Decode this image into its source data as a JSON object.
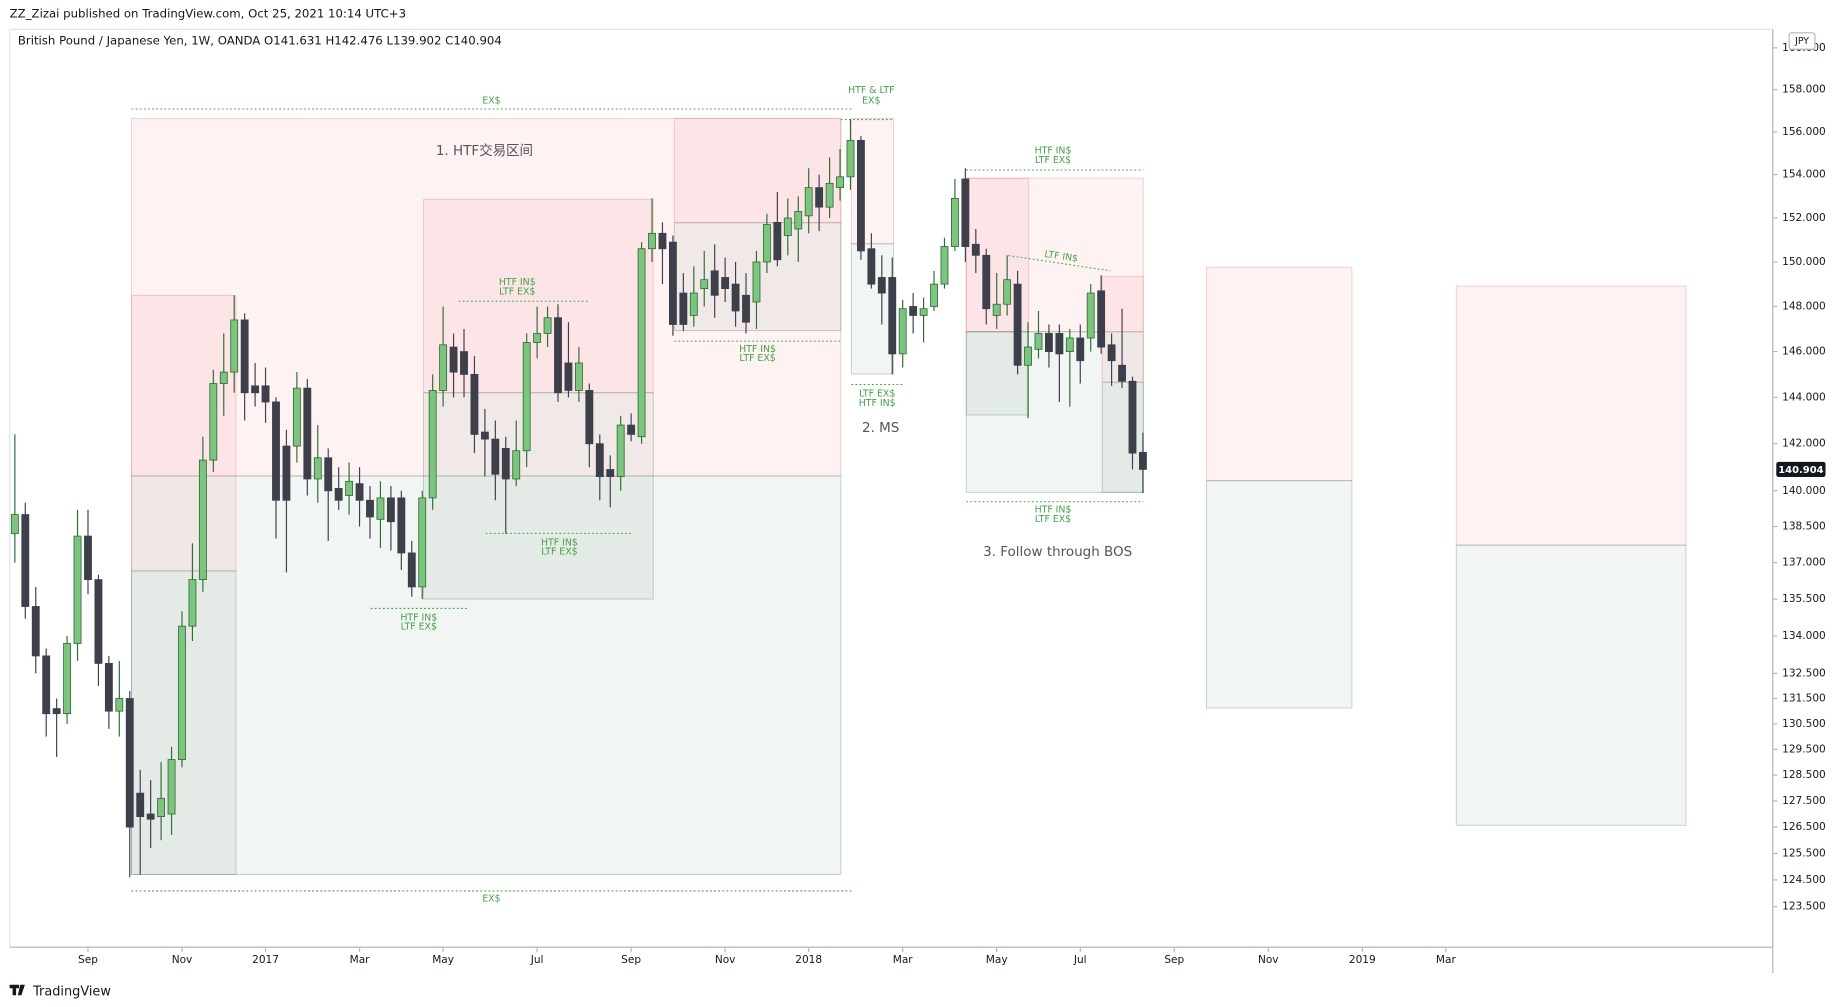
{
  "chart_data": {
    "type": "candlestick",
    "header": "ZZ_Zizai published on TradingView.com, Oct 25, 2021 10:14 UTC+3",
    "legend_line": "British Pound / Japanese Yen, 1W, OANDA  O141.631  H142.476  L139.902  C140.904",
    "currency_label": "JPY",
    "footer": "TradingView",
    "log_scale": true,
    "grid": false,
    "up_color": "#7cc47f",
    "down_color": "#3d3f4a",
    "open": [
      138.2,
      139,
      135.2,
      133.2,
      131.1,
      130.9,
      133.7,
      138.1,
      136.3,
      132.9,
      131,
      131.5,
      127.8,
      127,
      126.9,
      127,
      129.1,
      134.4,
      136.3,
      141.3,
      144.6,
      145.1,
      147.4,
      144.5,
      144.5,
      143.8,
      141.9,
      141.9,
      144.4,
      140.5,
      141.4,
      140.1,
      139.8,
      140.3,
      139.6,
      138.8,
      139.7,
      139.7,
      137.4,
      136,
      139.7,
      144.3,
      146.2,
      146,
      145,
      142.5,
      142.2,
      141.8,
      140.5,
      141.7,
      146.4,
      146.8,
      147.5,
      145.5,
      144.3,
      144.3,
      142,
      140.9,
      140.6,
      142.8,
      142.3,
      150.6,
      151.3,
      150.9,
      148.6,
      147.6,
      148.8,
      149.6,
      149.3,
      149,
      148.5,
      148.2,
      150,
      151.8,
      151.2,
      151.5,
      152.1,
      153.4,
      152.5,
      153.4,
      153.9,
      155.6,
      150.6,
      149.3,
      149.3,
      145.9,
      148,
      147.6,
      148,
      149,
      150.7,
      153.8,
      150.8,
      150.3,
      147.6,
      148.1,
      149,
      145.4,
      146.1,
      146.8,
      146.8,
      146,
      146.6,
      146.6,
      148.7,
      146.3,
      145.4,
      144.7,
      141.631
    ],
    "high": [
      142.4,
      139.5,
      136,
      133.5,
      131.5,
      134,
      139.2,
      139.2,
      136.5,
      133.2,
      133,
      131.8,
      128.7,
      128.3,
      129,
      129.6,
      135,
      137.8,
      142.3,
      145.2,
      146.8,
      148.5,
      147.7,
      145.5,
      145.3,
      144,
      142.6,
      145.1,
      144.8,
      142.8,
      141.8,
      141,
      141.2,
      141,
      140.2,
      140.4,
      140.2,
      140,
      137.9,
      140,
      145,
      148,
      146.8,
      147,
      145.8,
      143.5,
      143,
      142.3,
      143,
      146.8,
      148,
      148,
      148.1,
      147.3,
      146.2,
      144.6,
      142.4,
      141.5,
      143.2,
      143.3,
      150.9,
      152.9,
      151.8,
      151.2,
      149.5,
      149.8,
      150.5,
      150.8,
      150.2,
      150,
      149.5,
      150.5,
      152.2,
      153.2,
      152.9,
      153,
      154.3,
      154,
      154.8,
      155.2,
      156.6,
      155.8,
      151.3,
      150.3,
      150.2,
      148.3,
      148.6,
      148.4,
      149.6,
      151.1,
      153.8,
      154.3,
      151.5,
      150.6,
      149.5,
      150.3,
      149.6,
      147.3,
      147.8,
      147.2,
      147.2,
      147,
      147.2,
      149,
      149.4,
      146.8,
      147.9,
      144.9,
      142.476
    ],
    "low": [
      137,
      134.7,
      132.5,
      130,
      129.2,
      130.5,
      133,
      135.7,
      132,
      130.3,
      130,
      124.6,
      124.7,
      125.7,
      126,
      126.2,
      128.8,
      133.8,
      135.8,
      140.8,
      143.2,
      144.2,
      143,
      143.6,
      142.9,
      138,
      136.6,
      141.2,
      139.8,
      139.5,
      137.9,
      139.2,
      139,
      138.5,
      138,
      137.6,
      137.5,
      136.7,
      135.6,
      135.5,
      139.2,
      143.6,
      144,
      144,
      141.6,
      140.6,
      139.6,
      138.2,
      140.2,
      141,
      145.7,
      146.2,
      143.8,
      144,
      143.8,
      141,
      139.6,
      139.3,
      140,
      142.1,
      142,
      150,
      149,
      146.7,
      146.9,
      147.1,
      148,
      147.5,
      148.2,
      147.1,
      146.8,
      147,
      149.5,
      149.8,
      150.3,
      150,
      151.3,
      151.4,
      152,
      152.8,
      153.3,
      150.1,
      148.8,
      147.2,
      145,
      145.3,
      146.8,
      146.4,
      147.8,
      148.8,
      150.5,
      150,
      149.5,
      147.2,
      147,
      147.6,
      145,
      143.1,
      145.7,
      145.3,
      143.8,
      143.6,
      144.6,
      146,
      145.9,
      144.5,
      144.4,
      140.9,
      139.902
    ],
    "close": [
      139,
      135.2,
      133.2,
      130.9,
      130.9,
      133.7,
      138.1,
      136.3,
      132.9,
      131,
      131.5,
      126.5,
      126.9,
      126.8,
      127.6,
      129.1,
      134.4,
      136.3,
      141.3,
      144.6,
      145.1,
      147.4,
      144.2,
      144.2,
      143.8,
      139.6,
      139.6,
      144.4,
      140.5,
      141.4,
      140,
      139.6,
      140.4,
      139.6,
      138.9,
      139.7,
      138.7,
      137.4,
      136,
      139.7,
      144.3,
      146.3,
      145.1,
      145,
      142.4,
      142.2,
      140.7,
      140.5,
      141.7,
      146.4,
      146.8,
      147.5,
      144.2,
      144.3,
      145.5,
      142,
      140.6,
      140.6,
      142.8,
      142.4,
      150.6,
      151.3,
      150.6,
      147.2,
      147.2,
      148.6,
      149.2,
      148.5,
      148.8,
      147.8,
      147.3,
      150,
      151.7,
      150.1,
      152,
      152.3,
      153.4,
      152.5,
      153.6,
      153.9,
      155.6,
      150.5,
      149,
      148.6,
      145.9,
      147.9,
      147.6,
      147.9,
      149,
      150.7,
      152.9,
      150.7,
      150.3,
      147.9,
      148.1,
      149.2,
      145.4,
      146.2,
      146.8,
      146,
      145.9,
      146.6,
      145.6,
      148.6,
      146.2,
      145.6,
      144.7,
      141.6,
      140.904
    ],
    "ylim": [
      122,
      160.9
    ],
    "yticks": [
      {
        "value": 160,
        "label": "160.000"
      },
      {
        "value": 158,
        "label": "158.000"
      },
      {
        "value": 156,
        "label": "156.000"
      },
      {
        "value": 154,
        "label": "154.000"
      },
      {
        "value": 152,
        "label": "152.000"
      },
      {
        "value": 150,
        "label": "150.000"
      },
      {
        "value": 148,
        "label": "148.000"
      },
      {
        "value": 146,
        "label": "146.000"
      },
      {
        "value": 144,
        "label": "144.000"
      },
      {
        "value": 142,
        "label": "142.000"
      },
      {
        "value": 140,
        "label": "140.000"
      },
      {
        "value": 138.5,
        "label": "138.500"
      },
      {
        "value": 137,
        "label": "137.000"
      },
      {
        "value": 135.5,
        "label": "135.500"
      },
      {
        "value": 134,
        "label": "134.000"
      },
      {
        "value": 132.5,
        "label": "132.500"
      },
      {
        "value": 131.5,
        "label": "131.500"
      },
      {
        "value": 130.5,
        "label": "130.500"
      },
      {
        "value": 129.5,
        "label": "129.500"
      },
      {
        "value": 128.5,
        "label": "128.500"
      },
      {
        "value": 127.5,
        "label": "127.500"
      },
      {
        "value": 126.5,
        "label": "126.500"
      },
      {
        "value": 125.5,
        "label": "125.500"
      },
      {
        "value": 124.5,
        "label": "124.500"
      },
      {
        "value": 123.5,
        "label": "123.500"
      }
    ],
    "xlim": [
      -0.5,
      168.3
    ],
    "xticks": [
      {
        "value": 7,
        "label": "Sep"
      },
      {
        "value": 16,
        "label": "Nov"
      },
      {
        "value": 24,
        "label": "2017"
      },
      {
        "value": 33,
        "label": "Mar"
      },
      {
        "value": 41,
        "label": "May"
      },
      {
        "value": 50,
        "label": "Jul"
      },
      {
        "value": 59,
        "label": "Sep"
      },
      {
        "value": 68,
        "label": "Nov"
      },
      {
        "value": 76,
        "label": "2018"
      },
      {
        "value": 85,
        "label": "Mar"
      },
      {
        "value": 94,
        "label": "May"
      },
      {
        "value": 102,
        "label": "Jul"
      },
      {
        "value": 111,
        "label": "Sep"
      },
      {
        "value": 120,
        "label": "Nov"
      },
      {
        "value": 129,
        "label": "2019"
      },
      {
        "value": 137,
        "label": "Mar"
      }
    ],
    "last_price": 140.904,
    "annotations": [
      "EX$",
      "1. HTF交易区间",
      "HTF & LTF",
      "EX$",
      "HTF IN$",
      "LTF EX$",
      "LTF IN$",
      "HTF IN$",
      "LTF EX$",
      "HTF IN$",
      "LTF EX$",
      "LTF EX$",
      "HTF IN$",
      "2. MS",
      "HTF IN$",
      "LTF EX$",
      "HTF IN$",
      "LTF EX$",
      "HTF IN$",
      "LTF EX$",
      "3. Follow through BOS",
      "EX$"
    ]
  }
}
